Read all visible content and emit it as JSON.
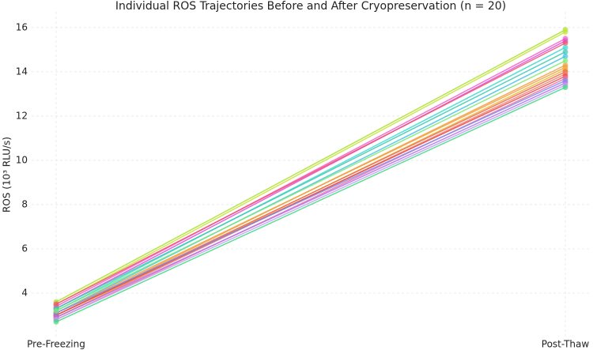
{
  "chart_data": {
    "type": "line",
    "title": "Individual ROS Trajectories Before and After Cryopreservation (n = 20)",
    "y_label": "ROS (10³ RLU/s)",
    "categories": [
      "Pre-Freezing",
      "Post-Thaw"
    ],
    "ylim": [
      2.0,
      16.71
    ],
    "yticks": [
      4,
      6,
      8,
      10,
      12,
      14,
      16
    ],
    "grid": true,
    "series": [
      {
        "color": "#a8e02a",
        "values": [
          3.6,
          15.9
        ]
      },
      {
        "color": "#c6e23a",
        "values": [
          3.5,
          15.8
        ]
      },
      {
        "color": "#f25cc8",
        "values": [
          3.4,
          15.5
        ]
      },
      {
        "color": "#e04ad8",
        "values": [
          3.3,
          15.4
        ]
      },
      {
        "color": "#f0506a",
        "values": [
          3.5,
          15.3
        ]
      },
      {
        "color": "#3ad8d0",
        "values": [
          3.2,
          15.1
        ]
      },
      {
        "color": "#3ac8b0",
        "values": [
          3.3,
          14.9
        ]
      },
      {
        "color": "#40c0e8",
        "values": [
          3.1,
          14.7
        ]
      },
      {
        "color": "#f59a3a",
        "values": [
          3.0,
          14.3
        ]
      },
      {
        "color": "#f0a040",
        "values": [
          3.1,
          14.2
        ]
      },
      {
        "color": "#e8b830",
        "values": [
          2.9,
          14.1
        ]
      },
      {
        "color": "#f06048",
        "values": [
          3.0,
          14.0
        ]
      },
      {
        "color": "#f08070",
        "values": [
          2.9,
          13.9
        ]
      },
      {
        "color": "#e84848",
        "values": [
          3.0,
          13.8
        ]
      },
      {
        "color": "#f070a0",
        "values": [
          2.8,
          13.7
        ]
      },
      {
        "color": "#7a8cf0",
        "values": [
          3.1,
          13.6
        ]
      },
      {
        "color": "#b070f0",
        "values": [
          2.9,
          13.5
        ]
      },
      {
        "color": "#c0a0f0",
        "values": [
          2.8,
          13.4
        ]
      },
      {
        "color": "#40d880",
        "values": [
          2.7,
          13.3
        ]
      },
      {
        "color": "#80e870",
        "values": [
          3.2,
          14.5
        ]
      }
    ]
  }
}
